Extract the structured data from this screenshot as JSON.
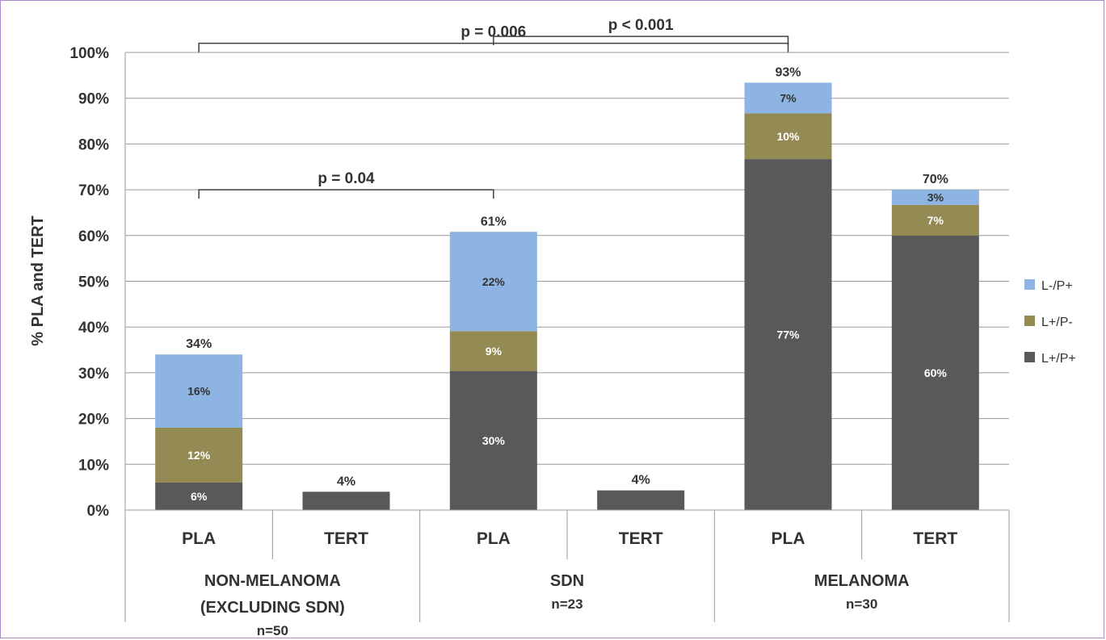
{
  "chart_data": {
    "type": "bar",
    "stacked": true,
    "ylabel": "% PLA and TERT",
    "ylim": [
      0,
      100
    ],
    "yticks": [
      "0%",
      "10%",
      "20%",
      "30%",
      "40%",
      "50%",
      "60%",
      "70%",
      "80%",
      "90%",
      "100%"
    ],
    "grid": true,
    "legend_position": "right",
    "categories": [
      "PLA",
      "TERT",
      "PLA",
      "TERT",
      "PLA",
      "TERT"
    ],
    "groups": [
      {
        "lines": [
          "NON-MELANOMA",
          "(EXCLUDING SDN)"
        ],
        "n": "n=50"
      },
      {
        "lines": [
          "SDN"
        ],
        "n": "n=23"
      },
      {
        "lines": [
          "MELANOMA"
        ],
        "n": "n=30"
      }
    ],
    "series": [
      {
        "name": "L+/P+",
        "color": "#595959",
        "values": [
          6,
          4,
          30.4,
          4.3,
          76.7,
          60
        ],
        "labels": [
          "6%",
          "",
          "30%",
          "",
          "77%",
          "60%"
        ]
      },
      {
        "name": "L+/P-",
        "color": "#948a54",
        "values": [
          12,
          0,
          8.7,
          0,
          10,
          6.7
        ],
        "labels": [
          "12%",
          "",
          "9%",
          "",
          "10%",
          "7%"
        ]
      },
      {
        "name": "L-/P+",
        "color": "#8db4e2",
        "values": [
          16,
          0,
          21.7,
          0,
          6.7,
          3.3
        ],
        "labels": [
          "16%",
          "",
          "22%",
          "",
          "7%",
          "3%"
        ]
      }
    ],
    "totals": [
      "34%",
      "4%",
      "61%",
      "4%",
      "93%",
      "70%"
    ],
    "annotations": [
      {
        "text": "p = 0.006",
        "from": 0,
        "to": 4,
        "y": 102
      },
      {
        "text": "p < 0.001",
        "from": 2,
        "to": 4,
        "y": 103.5
      },
      {
        "text": "p = 0.04",
        "from": 0,
        "to": 2,
        "y": 70
      }
    ]
  }
}
